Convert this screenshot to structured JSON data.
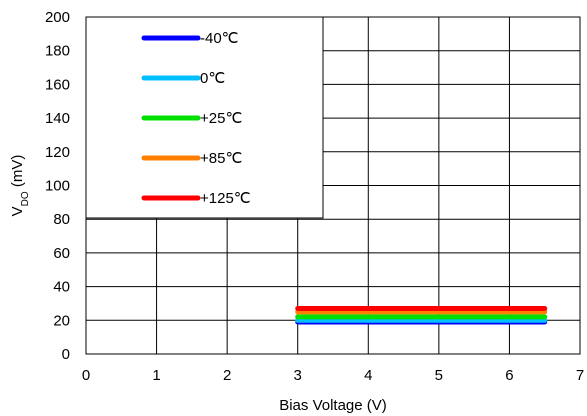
{
  "chart_data": {
    "type": "line",
    "xlabel": "Bias Voltage (V)",
    "ylabel_main": "V",
    "ylabel_sub": "DO",
    "ylabel_unit": " (mV)",
    "xlim": [
      0,
      7
    ],
    "ylim": [
      0,
      200
    ],
    "xticks": [
      0,
      1,
      2,
      3,
      4,
      5,
      6,
      7
    ],
    "yticks": [
      0,
      20,
      40,
      60,
      80,
      100,
      120,
      140,
      160,
      180,
      200
    ],
    "grid": true,
    "legend_position": "top-left",
    "series": [
      {
        "name": "-40℃",
        "color": "#0000ff",
        "x": [
          3,
          6.5
        ],
        "y": [
          19,
          19
        ]
      },
      {
        "name": "0℃",
        "color": "#00bfff",
        "x": [
          3,
          6.5
        ],
        "y": [
          20,
          20
        ]
      },
      {
        "name": "+25℃",
        "color": "#00e000",
        "x": [
          3,
          6.5
        ],
        "y": [
          22,
          22
        ]
      },
      {
        "name": "+85℃",
        "color": "#ff8000",
        "x": [
          3,
          6.5
        ],
        "y": [
          25,
          25
        ]
      },
      {
        "name": "+125℃",
        "color": "#ff0000",
        "x": [
          3,
          6.5
        ],
        "y": [
          27,
          27
        ]
      }
    ]
  }
}
